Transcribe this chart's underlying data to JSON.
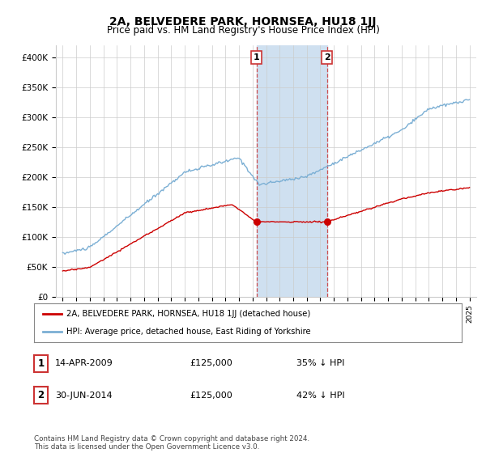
{
  "title": "2A, BELVEDERE PARK, HORNSEA, HU18 1JJ",
  "subtitle": "Price paid vs. HM Land Registry's House Price Index (HPI)",
  "ylim": [
    0,
    420000
  ],
  "xlim_start": 1994.5,
  "xlim_end": 2025.5,
  "sale1_x": 2009.29,
  "sale1_y": 125000,
  "sale2_x": 2014.5,
  "sale2_y": 125000,
  "legend_label1": "2A, BELVEDERE PARK, HORNSEA, HU18 1JJ (detached house)",
  "legend_label2": "HPI: Average price, detached house, East Riding of Yorkshire",
  "footer": "Contains HM Land Registry data © Crown copyright and database right 2024.\nThis data is licensed under the Open Government Licence v3.0.",
  "table_row1": [
    "1",
    "14-APR-2009",
    "£125,000",
    "35% ↓ HPI"
  ],
  "table_row2": [
    "2",
    "30-JUN-2014",
    "£125,000",
    "42% ↓ HPI"
  ],
  "red_line_color": "#cc0000",
  "blue_line_color": "#7bafd4",
  "shade_color": "#cfe0f0",
  "grid_color": "#cccccc",
  "background_color": "#ffffff"
}
